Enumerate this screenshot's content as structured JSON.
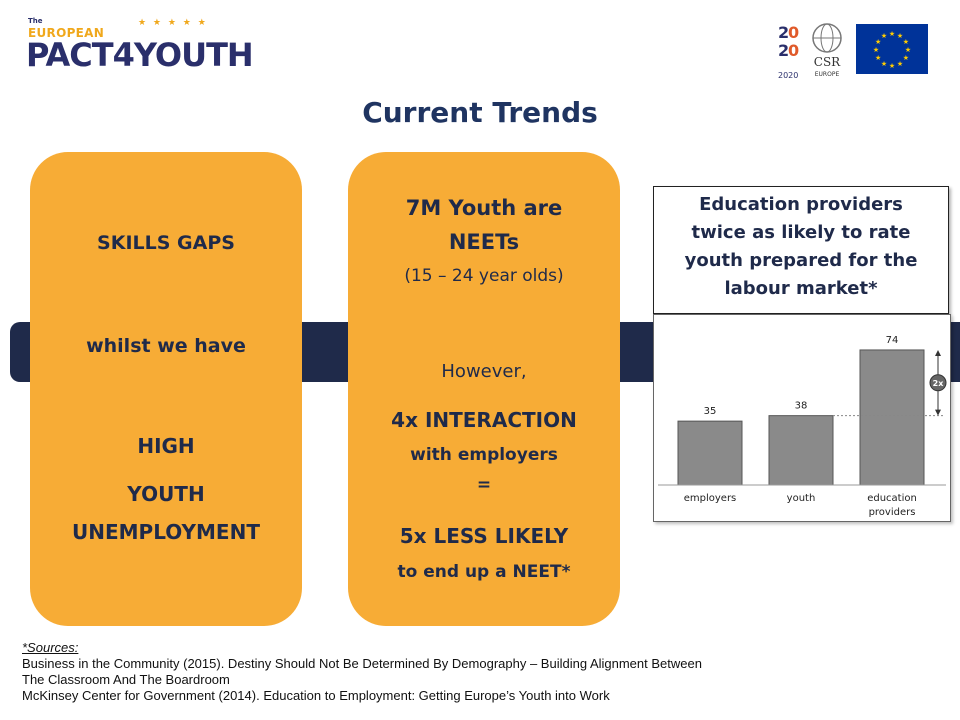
{
  "logo": {
    "small": "The",
    "top": "EUROPEAN",
    "main": "PACT4YOUTH"
  },
  "partner_logos": {
    "csr": "CSR",
    "csr_sub": "EUROPE",
    "ent": "2020"
  },
  "title": "Current Trends",
  "card1": {
    "line1": "SKILLS GAPS",
    "line2": "whilst we have",
    "line3": "HIGH",
    "line4": "YOUTH",
    "line5": "UNEMPLOYMENT"
  },
  "card2": {
    "line1": "7M Youth are",
    "line2": "NEETs",
    "line3": "(15 – 24 year olds)",
    "line4": "However,",
    "line5": "4x INTERACTION",
    "line6": "with employers",
    "line7": "=",
    "line8": "5x LESS LIKELY",
    "line9": "to end up a NEET*"
  },
  "info_box": {
    "text": "Education providers twice as likely to rate youth prepared for the labour market*"
  },
  "chart_data": {
    "type": "bar",
    "categories": [
      "employers",
      "youth",
      "education providers"
    ],
    "values": [
      35,
      38,
      74
    ],
    "ylim": [
      0,
      80
    ],
    "annotation": "2x",
    "grid": false,
    "colors": {
      "bar": "#8a8a8a",
      "bar_stroke": "#555555"
    }
  },
  "sources": {
    "heading": "*Sources:",
    "line1": "Business in the Community (2015). Destiny Should Not Be Determined By Demography – Building Alignment Between",
    "line2": "The Classroom And The Boardroom",
    "line3": "McKinsey Center for Government (2014). Education to Employment: Getting Europe’s Youth into Work"
  },
  "colors": {
    "orange": "#f7ac36",
    "navy": "#1f2a4a",
    "title": "#1f3461"
  }
}
